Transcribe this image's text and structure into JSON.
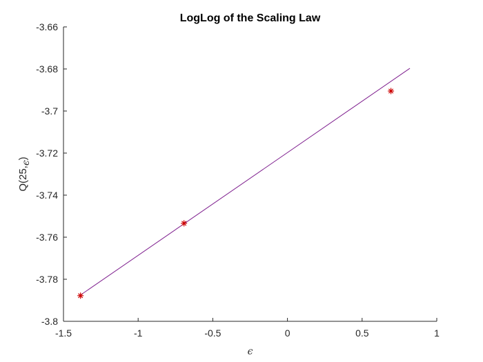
{
  "chart_data": {
    "type": "scatter",
    "title": "LogLog of the Scaling Law",
    "xlabel": "ϵ",
    "ylabel_main": "Q(25,",
    "ylabel_sub": "ϵ",
    "ylabel_close": ")",
    "xlim": [
      -1.5,
      1
    ],
    "ylim": [
      -3.8,
      -3.66
    ],
    "x_ticks": [
      -1.5,
      -1,
      -0.5,
      0,
      0.5,
      1
    ],
    "x_tick_labels": [
      "-1.5",
      "-1",
      "-0.5",
      "0",
      "0.5",
      "1"
    ],
    "y_ticks": [
      -3.8,
      -3.78,
      -3.76,
      -3.74,
      -3.72,
      -3.7,
      -3.68,
      -3.66
    ],
    "y_tick_labels": [
      "-3.8",
      "-3.78",
      "-3.76",
      "-3.74",
      "-3.72",
      "-3.7",
      "-3.68",
      "-3.66"
    ],
    "grid": false,
    "series": [
      {
        "kind": "markers",
        "marker": "asterisk",
        "color": "#cc0000",
        "x": [
          -1.386,
          -0.693,
          0.693
        ],
        "y": [
          -3.7878,
          -3.7534,
          -3.6905
        ]
      },
      {
        "kind": "line",
        "color": "#7e1e8e",
        "x": [
          -1.386,
          0.82
        ],
        "y": [
          -3.7875,
          -3.6797
        ]
      }
    ]
  }
}
